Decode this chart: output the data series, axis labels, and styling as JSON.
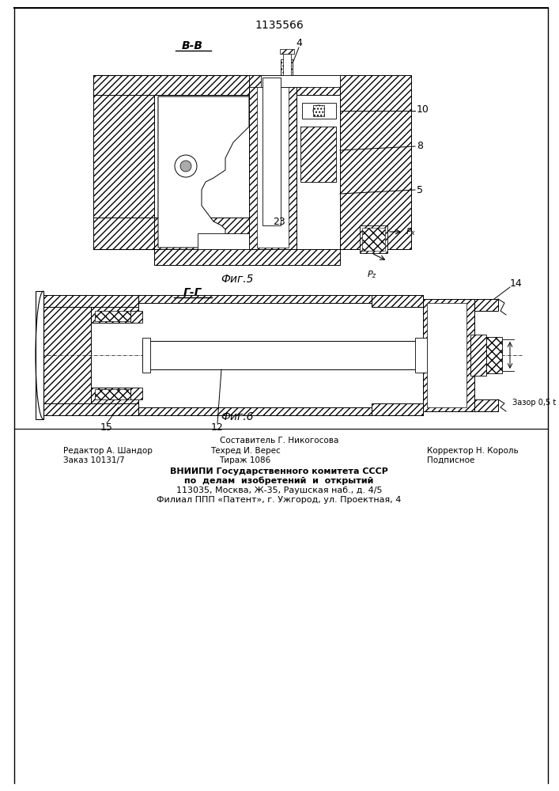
{
  "title_number": "1135566",
  "fig5_label": "В-В",
  "fig6_label": "Г-Г",
  "fig5_caption": "Фиг.5",
  "fig6_caption": "Фиг.6",
  "footer_line1": "Составитель Г. Никогосова",
  "footer_col1_line1": "Редактор А. Шандор",
  "footer_col1_line2": "Заказ 10131/7",
  "footer_col2_line1": "Техред И. Верес",
  "footer_col2_line2": "Тираж 1086",
  "footer_col3_line1": "Корректор Н. Король",
  "footer_col3_line2": "Подписное",
  "footer_line4": "ВНИИПИ Государственного комитета СССР",
  "footer_line5": "по  делам  изобретений  и  открытий",
  "footer_line6": "113035, Москва, Ж-35, Раушская наб., д. 4/5",
  "footer_line7": "Филиал ППП «Патент», г. Ужгород, ул. Проектная, 4",
  "bg_color": "#ffffff"
}
